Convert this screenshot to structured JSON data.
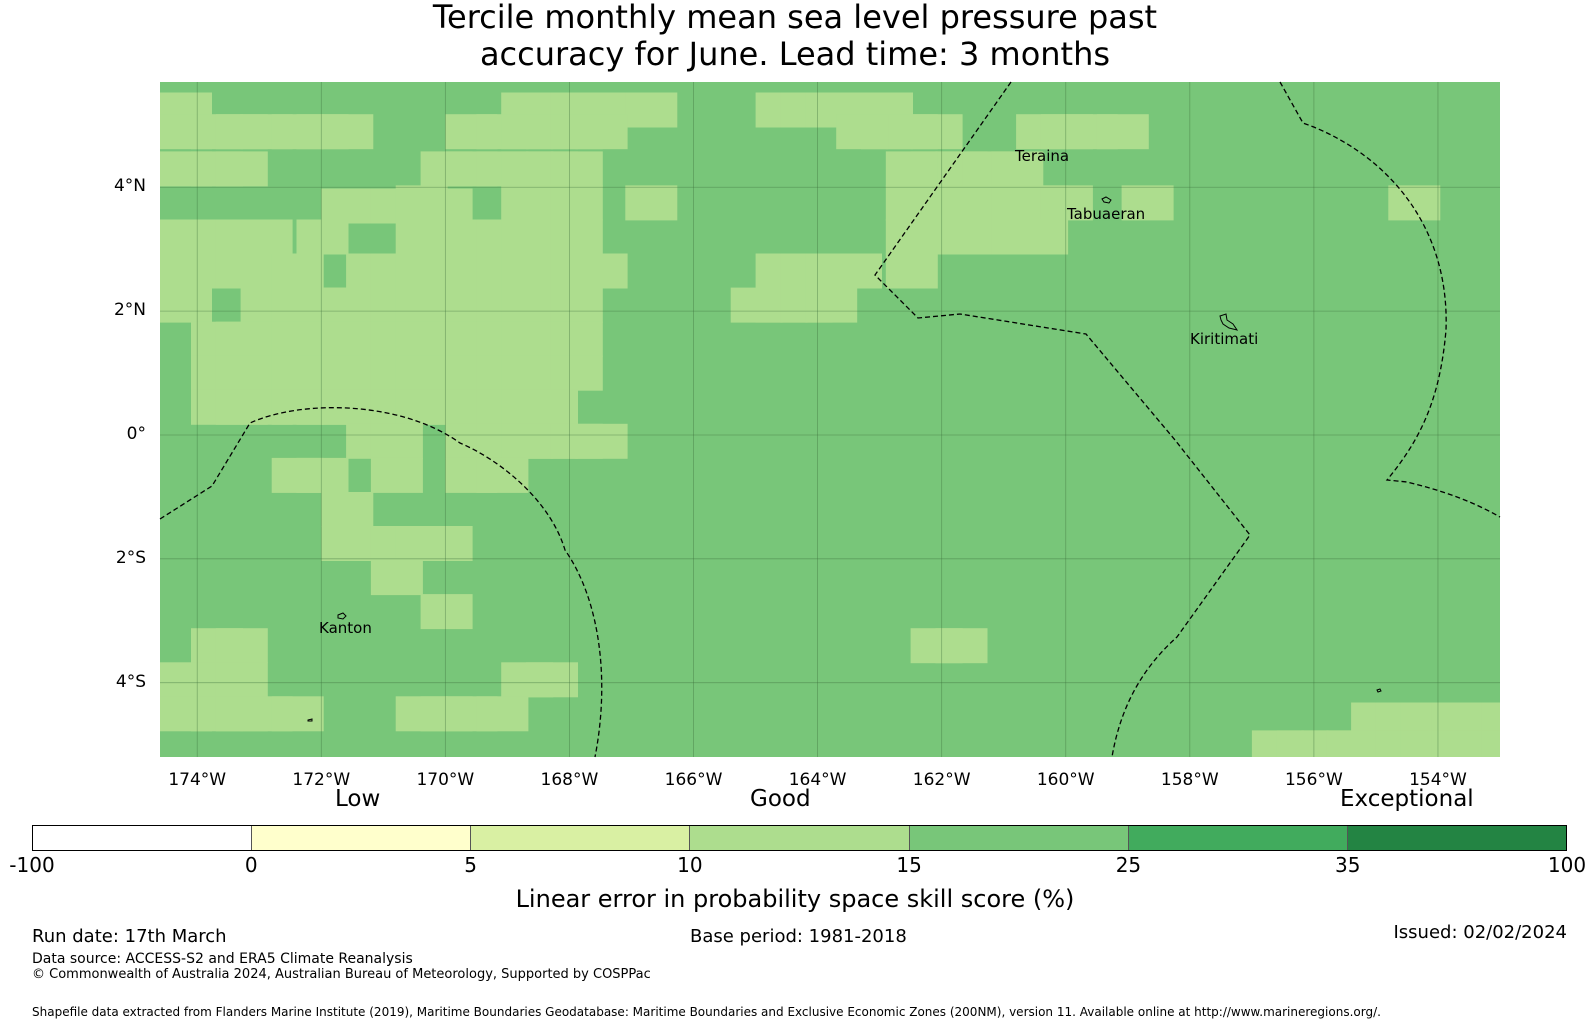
{
  "title_line1": "Tercile monthly mean sea level pressure past",
  "title_line2": "accuracy for June. Lead time: 3 months",
  "map": {
    "lat_labels": [
      "4°N",
      "2°N",
      "0°",
      "2°S",
      "4°S"
    ],
    "lat_values": [
      4,
      2,
      0,
      -2,
      -4
    ],
    "lon_labels": [
      "174°W",
      "172°W",
      "170°W",
      "168°W",
      "166°W",
      "164°W",
      "162°W",
      "160°W",
      "158°W",
      "156°W",
      "154°W"
    ],
    "lon_values": [
      -174,
      -172,
      -170,
      -168,
      -166,
      -164,
      -162,
      -160,
      -158,
      -156,
      -154
    ],
    "extent": {
      "lon_min": -174.6,
      "lon_max": -153.0,
      "lat_min": -5.2,
      "lat_max": 5.7
    },
    "islands": [
      "Teraina",
      "Tabuaeran",
      "Kiritimati",
      "Kanton"
    ],
    "base_color": "#78c679",
    "light_color": "#addd8e",
    "light_cells": [
      [
        -174.6,
        5.25
      ],
      [
        -174.6,
        4.9
      ],
      [
        -174.1,
        4.9
      ],
      [
        -173.7,
        4.9
      ],
      [
        -173.3,
        4.9
      ],
      [
        -172.8,
        4.9
      ],
      [
        -172.4,
        4.9
      ],
      [
        -172.0,
        4.9
      ],
      [
        -174.6,
        4.3
      ],
      [
        -174.1,
        4.3
      ],
      [
        -173.7,
        4.3
      ],
      [
        -172.0,
        3.7
      ],
      [
        -171.6,
        3.7
      ],
      [
        -171.2,
        3.7
      ],
      [
        -170.8,
        3.7
      ],
      [
        -170.4,
        3.7
      ],
      [
        -174.6,
        3.2
      ],
      [
        -174.1,
        3.2
      ],
      [
        -173.7,
        3.2
      ],
      [
        -173.3,
        3.2
      ],
      [
        -172.4,
        3.2
      ],
      [
        -170.8,
        3.2
      ],
      [
        -170.4,
        3.2
      ],
      [
        -170.0,
        3.2
      ],
      [
        -169.5,
        3.2
      ],
      [
        -169.1,
        3.2
      ],
      [
        -168.7,
        3.2
      ],
      [
        -168.3,
        3.2
      ],
      [
        -174.6,
        2.65
      ],
      [
        -174.1,
        2.65
      ],
      [
        -173.7,
        2.65
      ],
      [
        -173.3,
        2.65
      ],
      [
        -172.8,
        2.65
      ],
      [
        -171.6,
        2.65
      ],
      [
        -171.2,
        2.65
      ],
      [
        -170.8,
        2.65
      ],
      [
        -170.4,
        2.65
      ],
      [
        -170.0,
        2.65
      ],
      [
        -169.5,
        2.65
      ],
      [
        -169.1,
        2.65
      ],
      [
        -168.7,
        2.65
      ],
      [
        -168.3,
        2.65
      ],
      [
        -167.9,
        2.65
      ],
      [
        -174.6,
        2.1
      ],
      [
        -173.3,
        2.1
      ],
      [
        -172.8,
        2.1
      ],
      [
        -172.4,
        2.1
      ],
      [
        -172.0,
        2.1
      ],
      [
        -171.6,
        2.1
      ],
      [
        -171.2,
        2.1
      ],
      [
        -170.8,
        2.1
      ],
      [
        -170.4,
        2.1
      ],
      [
        -170.0,
        2.1
      ],
      [
        -169.5,
        2.1
      ],
      [
        -169.1,
        2.1
      ],
      [
        -168.7,
        2.1
      ],
      [
        -168.3,
        2.1
      ],
      [
        -174.1,
        1.55
      ],
      [
        -173.7,
        1.55
      ],
      [
        -173.3,
        1.55
      ],
      [
        -172.8,
        1.55
      ],
      [
        -172.4,
        1.55
      ],
      [
        -172.0,
        1.55
      ],
      [
        -171.6,
        1.55
      ],
      [
        -171.2,
        1.55
      ],
      [
        -170.8,
        1.55
      ],
      [
        -170.4,
        1.55
      ],
      [
        -170.0,
        1.55
      ],
      [
        -169.5,
        1.55
      ],
      [
        -169.1,
        1.55
      ],
      [
        -168.7,
        1.55
      ],
      [
        -168.3,
        1.55
      ],
      [
        -174.1,
        1.0
      ],
      [
        -173.7,
        1.0
      ],
      [
        -173.3,
        1.0
      ],
      [
        -172.8,
        1.0
      ],
      [
        -172.4,
        1.0
      ],
      [
        -172.0,
        1.0
      ],
      [
        -171.6,
        1.0
      ],
      [
        -171.2,
        1.0
      ],
      [
        -170.8,
        1.0
      ],
      [
        -170.4,
        1.0
      ],
      [
        -170.0,
        1.0
      ],
      [
        -169.5,
        1.0
      ],
      [
        -169.1,
        1.0
      ],
      [
        -168.7,
        1.0
      ],
      [
        -168.3,
        1.0
      ],
      [
        -174.1,
        0.45
      ],
      [
        -173.7,
        0.45
      ],
      [
        -173.3,
        0.45
      ],
      [
        -172.8,
        0.45
      ],
      [
        -172.4,
        0.45
      ],
      [
        -172.0,
        0.45
      ],
      [
        -171.6,
        0.45
      ],
      [
        -171.2,
        0.45
      ],
      [
        -170.8,
        0.45
      ],
      [
        -170.4,
        0.45
      ],
      [
        -170.0,
        0.45
      ],
      [
        -169.5,
        0.45
      ],
      [
        -169.1,
        0.45
      ],
      [
        -168.7,
        0.45
      ],
      [
        -171.6,
        -0.1
      ],
      [
        -171.2,
        -0.1
      ],
      [
        -170.0,
        -0.1
      ],
      [
        -169.5,
        -0.1
      ],
      [
        -169.1,
        -0.1
      ],
      [
        -168.7,
        -0.1
      ],
      [
        -168.3,
        -0.1
      ],
      [
        -167.9,
        -0.1
      ],
      [
        -172.8,
        -0.65
      ],
      [
        -172.4,
        -0.65
      ],
      [
        -171.2,
        -0.65
      ],
      [
        -170.0,
        -0.65
      ],
      [
        -169.5,
        -0.65
      ],
      [
        -172.0,
        -1.2
      ],
      [
        -172.0,
        -1.75
      ],
      [
        -171.6,
        -1.75
      ],
      [
        -171.2,
        -1.75
      ],
      [
        -170.8,
        -1.75
      ],
      [
        -170.4,
        -1.75
      ],
      [
        -171.2,
        -2.3
      ],
      [
        -170.4,
        -2.85
      ],
      [
        -174.1,
        -3.4
      ],
      [
        -173.7,
        -3.4
      ],
      [
        -162.5,
        -3.4
      ],
      [
        -162.1,
        -3.4
      ],
      [
        -174.6,
        -3.95
      ],
      [
        -174.1,
        -3.95
      ],
      [
        -173.7,
        -3.95
      ],
      [
        -169.1,
        -3.95
      ],
      [
        -168.7,
        -3.95
      ],
      [
        -174.6,
        -4.5
      ],
      [
        -174.1,
        -4.5
      ],
      [
        -173.7,
        -4.5
      ],
      [
        -173.3,
        -4.5
      ],
      [
        -172.8,
        -4.5
      ],
      [
        -170.8,
        -4.5
      ],
      [
        -170.4,
        -4.5
      ],
      [
        -170.0,
        -4.5
      ],
      [
        -169.5,
        -4.5
      ],
      [
        -169.1,
        5.25
      ],
      [
        -168.7,
        5.25
      ],
      [
        -168.3,
        5.25
      ],
      [
        -167.9,
        5.25
      ],
      [
        -167.5,
        5.25
      ],
      [
        -167.1,
        5.25
      ],
      [
        -170.0,
        4.9
      ],
      [
        -169.5,
        4.9
      ],
      [
        -169.1,
        4.9
      ],
      [
        -168.7,
        4.9
      ],
      [
        -168.3,
        4.9
      ],
      [
        -167.9,
        4.9
      ],
      [
        -170.4,
        4.3
      ],
      [
        -170.0,
        4.3
      ],
      [
        -169.5,
        4.3
      ],
      [
        -169.1,
        4.3
      ],
      [
        -168.7,
        4.3
      ],
      [
        -168.3,
        4.3
      ],
      [
        -170.8,
        3.75
      ],
      [
        -169.1,
        3.75
      ],
      [
        -168.7,
        3.75
      ],
      [
        -168.3,
        3.75
      ],
      [
        -167.1,
        3.75
      ],
      [
        -165.0,
        5.25
      ],
      [
        -164.6,
        5.25
      ],
      [
        -164.2,
        5.25
      ],
      [
        -163.8,
        5.25
      ],
      [
        -163.3,
        5.25
      ],
      [
        -163.3,
        4.9
      ],
      [
        -162.9,
        4.9
      ],
      [
        -162.5,
        4.9
      ],
      [
        -163.7,
        4.9
      ],
      [
        -162.1,
        4.3
      ],
      [
        -161.6,
        4.3
      ],
      [
        -161.2,
        4.3
      ],
      [
        -162.5,
        4.3
      ],
      [
        -162.9,
        4.3
      ],
      [
        -160.8,
        4.9
      ],
      [
        -160.4,
        4.9
      ],
      [
        -160.0,
        4.9
      ],
      [
        -159.5,
        4.9
      ],
      [
        -162.9,
        3.75
      ],
      [
        -162.5,
        3.75
      ],
      [
        -162.1,
        3.75
      ],
      [
        -161.6,
        3.75
      ],
      [
        -161.2,
        3.75
      ],
      [
        -160.8,
        3.75
      ],
      [
        -160.4,
        3.75
      ],
      [
        -159.1,
        3.75
      ],
      [
        -162.9,
        3.2
      ],
      [
        -162.5,
        3.2
      ],
      [
        -162.1,
        3.2
      ],
      [
        -161.6,
        3.2
      ],
      [
        -161.2,
        3.2
      ],
      [
        -160.8,
        3.2
      ],
      [
        -162.9,
        2.65
      ],
      [
        -165.0,
        2.65
      ],
      [
        -164.6,
        2.65
      ],
      [
        -164.2,
        2.65
      ],
      [
        -165.4,
        2.1
      ],
      [
        -165.0,
        2.1
      ],
      [
        -164.6,
        2.1
      ],
      [
        -164.2,
        2.1
      ],
      [
        -163.8,
        2.65
      ],
      [
        -154.8,
        3.75
      ],
      [
        -157.0,
        -5.05
      ],
      [
        -156.6,
        -5.05
      ],
      [
        -156.2,
        -5.05
      ],
      [
        -155.8,
        -5.05
      ],
      [
        -155.4,
        -4.6
      ],
      [
        -155.0,
        -4.6
      ],
      [
        -154.6,
        -4.6
      ],
      [
        -154.1,
        -4.6
      ],
      [
        -153.7,
        -4.6
      ],
      [
        -153.3,
        -4.6
      ],
      [
        -155.4,
        -5.05
      ],
      [
        -155.0,
        -5.05
      ],
      [
        -154.6,
        -5.05
      ],
      [
        -154.1,
        -5.05
      ],
      [
        -153.7,
        -5.05
      ],
      [
        -153.3,
        -5.05
      ]
    ]
  },
  "colorbar": {
    "low_label": "Low",
    "good_label": "Good",
    "exceptional_label": "Exceptional",
    "ticks": [
      "-100",
      "0",
      "5",
      "10",
      "15",
      "25",
      "35",
      "100"
    ],
    "colors": [
      "#ffffff",
      "#ffffcc",
      "#d9f0a3",
      "#addd8e",
      "#78c679",
      "#41ab5d",
      "#238443"
    ],
    "label": "Linear error in probability space skill score (%)"
  },
  "footer": {
    "run_date": "Run date: 17th March",
    "base_period": "Base period: 1981-2018",
    "issued": "Issued: 02/02/2024",
    "data_source": "Data source: ACCESS-S2 and ERA5 Climate Reanalysis",
    "copyright": "© Commonwealth of Australia 2024, Australian Bureau of Meteorology, Supported by COSPPac",
    "shapefile": "Shapefile data extracted from Flanders Marine Institute (2019), Maritime Boundaries Geodatabase: Maritime Boundaries and Exclusive Economic Zones (200NM), version 11. Available online at http://www.marineregions.org/."
  }
}
